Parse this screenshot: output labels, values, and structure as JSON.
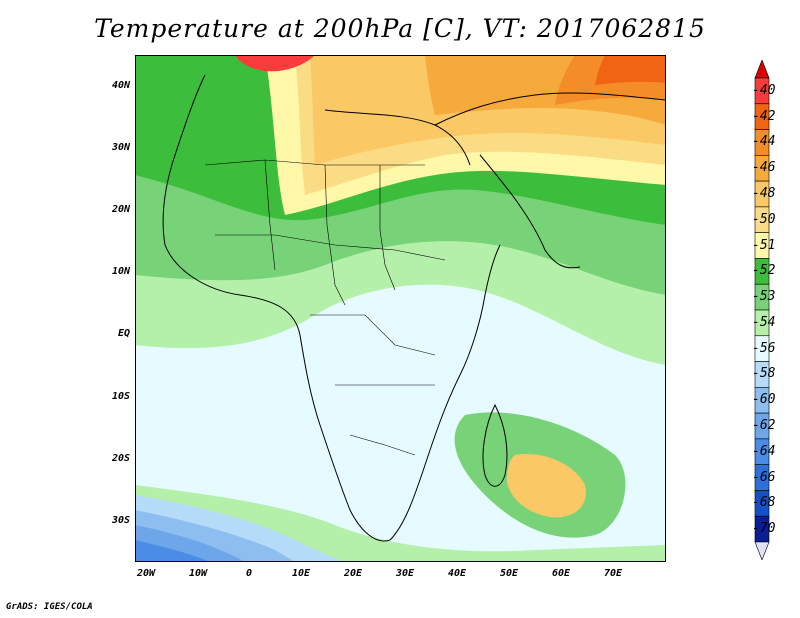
{
  "title": "Temperature at 200hPa [C], VT: 2017062815",
  "credit": "GrADS: IGES/COLA",
  "lat_labels": [
    "40N",
    "30N",
    "20N",
    "10N",
    "EQ",
    "10S",
    "20S",
    "30S"
  ],
  "lon_labels": [
    "20W",
    "10W",
    "0",
    "10E",
    "20E",
    "30E",
    "40E",
    "50E",
    "60E",
    "70E"
  ],
  "colorbar": {
    "labels": [
      "-40",
      "-42",
      "-44",
      "-46",
      "-48",
      "-50",
      "-51",
      "-52",
      "-53",
      "-54",
      "-56",
      "-58",
      "-60",
      "-62",
      "-64",
      "-66",
      "-68",
      "-70"
    ],
    "colors": [
      "#fa3c3c",
      "#f06414",
      "#f48c28",
      "#f6aa3c",
      "#fac864",
      "#fadc84",
      "#fff8a8",
      "#3cbe3c",
      "#78d278",
      "#b4f0aa",
      "#e6fbff",
      "#b4dcf8",
      "#8cbef0",
      "#6ea6ea",
      "#4b8ce6",
      "#2d70dc",
      "#1450c8",
      "#0a1e96"
    ],
    "top_arrow_color": "#dc0000",
    "bottom_arrow_color": "#e0e0f8"
  },
  "map": {
    "projection": "lat-lon",
    "lon_range": [
      -22,
      80
    ],
    "lat_range": [
      -37,
      45
    ],
    "field": "Temperature at 200hPa"
  }
}
